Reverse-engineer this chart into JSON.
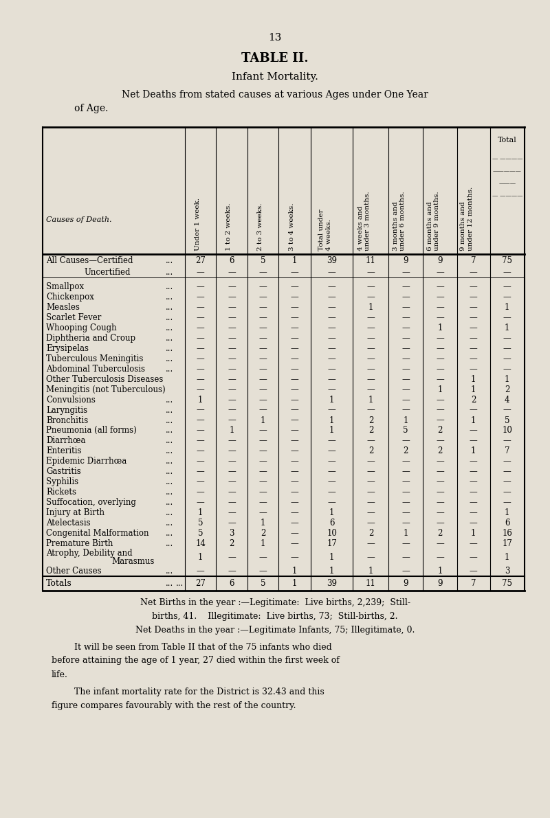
{
  "page_number": "13",
  "title1": "TABLE II.",
  "title2": "Infant Mortality.",
  "title3_line1": "Net Deaths from stated causes at various Ages under One Year",
  "title3_line2": "of Age.",
  "bg_color": "#e5e0d5",
  "col_headers": [
    "Under 1 week.",
    "1 to 2 weeks.",
    "2 to 3 weeks.",
    "3 to 4 weeks.",
    "Total under\n4 weeks.",
    "4 weeks and\nunder 3 months.",
    "3 months and\nunder 6 months.",
    "6 months and\nunder 9 months.",
    "9 months and\nunder 12 months."
  ],
  "total_header_lines": [
    "Total",
    "— ······",
    "······",
    "···",
    "· ····"
  ],
  "rows": [
    {
      "cause": "All Causes—Certified",
      "dots": "...",
      "indent": false,
      "vals": [
        "27",
        "6",
        "5",
        "1",
        "39",
        "11",
        "9",
        "9",
        "7",
        "75"
      ]
    },
    {
      "cause": "Uncertified",
      "dots": "...",
      "indent": true,
      "vals": [
        "—",
        "—",
        "—",
        "—",
        "—",
        "—",
        "—",
        "—",
        "—",
        "—"
      ]
    },
    {
      "cause": "",
      "dots": "",
      "indent": false,
      "vals": [
        "",
        "",
        "",
        "",
        "",
        "",
        "",
        "",
        "",
        ""
      ]
    },
    {
      "cause": "Smallpox",
      "dots": "...",
      "indent": false,
      "vals": [
        "—",
        "—",
        "—",
        "—",
        "—",
        "—",
        "—",
        "—",
        "—",
        "—"
      ]
    },
    {
      "cause": "Chickenpox",
      "dots": "...",
      "indent": false,
      "vals": [
        "—",
        "—",
        "—",
        "—",
        "—",
        "—",
        "—",
        "—",
        "—",
        "—"
      ]
    },
    {
      "cause": "Measles",
      "dots": "...",
      "indent": false,
      "vals": [
        "—",
        "—",
        "—",
        "—",
        "—",
        "1",
        "—",
        "—",
        "—",
        "1"
      ]
    },
    {
      "cause": "Scarlet Fever",
      "dots": "...",
      "indent": false,
      "vals": [
        "—",
        "—",
        "—",
        "—",
        "—",
        "—",
        "—",
        "—",
        "—",
        "—"
      ]
    },
    {
      "cause": "Whooping Cough",
      "dots": "...",
      "indent": false,
      "vals": [
        "—",
        "—",
        "—",
        "—",
        "—",
        "—",
        "—",
        "1",
        "—",
        "1"
      ]
    },
    {
      "cause": "Diphtheria and Croup",
      "dots": "...",
      "indent": false,
      "vals": [
        "—",
        "—",
        "—",
        "—",
        "—",
        "—",
        "—",
        "—",
        "—",
        "—"
      ]
    },
    {
      "cause": "Erysipelas",
      "dots": "...",
      "indent": false,
      "vals": [
        "—",
        "—",
        "—",
        "—",
        "—",
        "—",
        "—",
        "—",
        "—",
        "—"
      ]
    },
    {
      "cause": "Tuberculous Meningitis",
      "dots": "...",
      "indent": false,
      "vals": [
        "—",
        "—",
        "—",
        "—",
        "—",
        "—",
        "—",
        "—",
        "—",
        "—"
      ]
    },
    {
      "cause": "Abdominal Tuberculosis",
      "dots": "...",
      "indent": false,
      "vals": [
        "—",
        "—",
        "—",
        "—",
        "—",
        "—",
        "—",
        "—",
        "—",
        "—"
      ]
    },
    {
      "cause": "Other Tuberculosis Diseases",
      "dots": "",
      "indent": false,
      "vals": [
        "—",
        "—",
        "—",
        "—",
        "—",
        "—",
        "—",
        "—",
        "1",
        "1"
      ]
    },
    {
      "cause": "Meningitis (not Tuberculous)",
      "dots": "",
      "indent": false,
      "vals": [
        "—",
        "—",
        "—",
        "—",
        "—",
        "—",
        "—",
        "1",
        "1",
        "2"
      ]
    },
    {
      "cause": "Convulsions",
      "dots": "...",
      "indent": false,
      "vals": [
        "1",
        "—",
        "—",
        "—",
        "1",
        "1",
        "—",
        "—",
        "2",
        "4"
      ]
    },
    {
      "cause": "Laryngitis",
      "dots": "...",
      "indent": false,
      "vals": [
        "—",
        "—",
        "—",
        "—",
        "—",
        "—",
        "—",
        "—",
        "—",
        "—"
      ]
    },
    {
      "cause": "Bronchitis",
      "dots": "...",
      "indent": false,
      "vals": [
        "—",
        "—",
        "1",
        "—",
        "1",
        "2",
        "1",
        "—",
        "1",
        "5"
      ]
    },
    {
      "cause": "Pneumonia (all forms)",
      "dots": "...",
      "indent": false,
      "vals": [
        "—",
        "1",
        "—",
        "—",
        "1",
        "2",
        "5",
        "2",
        "—",
        "10"
      ]
    },
    {
      "cause": "Diarrhœa",
      "dots": "...",
      "indent": false,
      "vals": [
        "—",
        "—",
        "—",
        "—",
        "—",
        "—",
        "—",
        "—",
        "—",
        "—"
      ]
    },
    {
      "cause": "Enteritis",
      "dots": "...",
      "indent": false,
      "vals": [
        "—",
        "—",
        "—",
        "—",
        "—",
        "2",
        "2",
        "2",
        "1",
        "7"
      ]
    },
    {
      "cause": "Epidemic Diarrhœa",
      "dots": "...",
      "indent": false,
      "vals": [
        "—",
        "—",
        "—",
        "—",
        "—",
        "—",
        "—",
        "—",
        "—",
        "—"
      ]
    },
    {
      "cause": "Gastritis",
      "dots": "...",
      "indent": false,
      "vals": [
        "—",
        "—",
        "—",
        "—",
        "—",
        "—",
        "—",
        "—",
        "—",
        "—"
      ]
    },
    {
      "cause": "Syphilis",
      "dots": "...",
      "indent": false,
      "vals": [
        "—",
        "—",
        "—",
        "—",
        "—",
        "—",
        "—",
        "—",
        "—",
        "—"
      ]
    },
    {
      "cause": "Rickets",
      "dots": "...",
      "indent": false,
      "vals": [
        "—",
        "—",
        "—",
        "—",
        "—",
        "—",
        "—",
        "—",
        "—",
        "—"
      ]
    },
    {
      "cause": "Suffocation, overlying",
      "dots": "...",
      "indent": false,
      "vals": [
        "—",
        "—",
        "—",
        "—",
        "—",
        "—",
        "—",
        "—",
        "—",
        "—"
      ]
    },
    {
      "cause": "Injury at Birth",
      "dots": "...",
      "indent": false,
      "vals": [
        "1",
        "—",
        "—",
        "—",
        "1",
        "—",
        "—",
        "—",
        "—",
        "1"
      ]
    },
    {
      "cause": "Atelectasis",
      "dots": "...",
      "indent": false,
      "vals": [
        "5",
        "—",
        "1",
        "—",
        "6",
        "—",
        "—",
        "—",
        "—",
        "6"
      ]
    },
    {
      "cause": "Congenital Malformation",
      "dots": "...",
      "indent": false,
      "vals": [
        "5",
        "3",
        "2",
        "—",
        "10",
        "2",
        "1",
        "2",
        "1",
        "16"
      ]
    },
    {
      "cause": "Premature Birth",
      "dots": "...",
      "indent": false,
      "vals": [
        "14",
        "2",
        "1",
        "—",
        "17",
        "—",
        "—",
        "—",
        "—",
        "17"
      ]
    },
    {
      "cause": "Atrophy, Debility and",
      "cause2": "Marasmus",
      "dots": "",
      "indent": false,
      "vals": [
        "1",
        "—",
        "—",
        "—",
        "1",
        "—",
        "—",
        "—",
        "—",
        "1"
      ]
    },
    {
      "cause": "Other Causes",
      "dots": "...",
      "indent": false,
      "vals": [
        "—",
        "—",
        "—",
        "1",
        "1",
        "1",
        "—",
        "1",
        "—",
        "3"
      ]
    },
    {
      "cause": "Totals",
      "dots": "...",
      "indent": false,
      "vals": [
        "27",
        "6",
        "5",
        "1",
        "39",
        "11",
        "9",
        "9",
        "7",
        "75"
      ]
    }
  ]
}
